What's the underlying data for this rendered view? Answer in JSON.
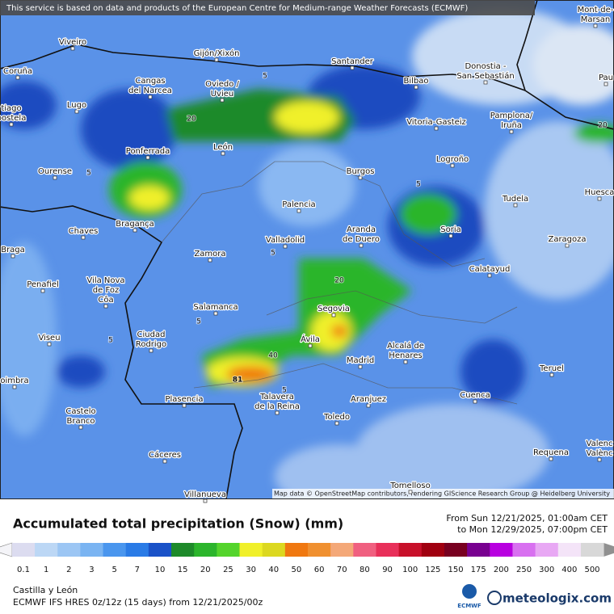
{
  "banner": "This service is based on data and products of the European Centre for Medium-range Weather Forecasts (ECMWF)",
  "map": {
    "places": [
      [
        "Viveiro"
      ],
      [
        "Gijón/Xixón"
      ],
      [
        "Santander"
      ],
      [
        "Donostia -",
        "San Sebastián"
      ],
      [
        "Coruña"
      ],
      [
        "Cangas",
        "del Narcea"
      ],
      [
        "Oviedo /",
        "Uvieu"
      ],
      [
        "Bilbao"
      ],
      [
        "Mont-de-",
        "Marsan"
      ],
      [
        "Pau"
      ],
      [
        "tiago",
        "postela"
      ],
      [
        "Lugo"
      ],
      [
        "Vitoria-Gasteiz"
      ],
      [
        "Pamplona/",
        "Iruña"
      ],
      [
        "Ponferrada"
      ],
      [
        "León"
      ],
      [
        "Logroño"
      ],
      [
        "Ourense"
      ],
      [
        "Burgos"
      ],
      [
        "Tudela"
      ],
      [
        "Huesca"
      ],
      [
        "Bragança"
      ],
      [
        "Palencia"
      ],
      [
        "Chaves"
      ],
      [
        "Aranda",
        "de Duero"
      ],
      [
        "Soria"
      ],
      [
        "Zaragoza"
      ],
      [
        "Braga"
      ],
      [
        "Valladolid"
      ],
      [
        "Zamora"
      ],
      [
        "Calatayud"
      ],
      [
        "Penafiel"
      ],
      [
        "Vila Nova",
        "de Foz",
        "Côa"
      ],
      [
        "Salamanca"
      ],
      [
        "Segovia"
      ],
      [
        "Ciudad",
        "Rodrigo"
      ],
      [
        "Viseu"
      ],
      [
        "Ávila"
      ],
      [
        "Alcalá de",
        "Henares"
      ],
      [
        "Madrid"
      ],
      [
        "Teruel"
      ],
      [
        "oimbra"
      ],
      [
        "Plasencia"
      ],
      [
        "Talavera",
        "de la Reina"
      ],
      [
        "Aranjuez"
      ],
      [
        "Cuenca"
      ],
      [
        "Castelo",
        "Branco"
      ],
      [
        "Toledo"
      ],
      [
        "Cáceres"
      ],
      [
        "Requena"
      ],
      [
        "Valenc",
        "Valènc"
      ],
      [
        "Tomelloso"
      ],
      [
        "Villanueva"
      ]
    ],
    "contour_labels": [
      "5",
      "20",
      "5",
      "5",
      "5",
      "20",
      "5",
      "5",
      "40",
      "81",
      "5",
      "20"
    ],
    "attribution": "Map data © OpenStreetMap contributors, rendering GIScience Research Group @ Heidelberg University"
  },
  "legend": {
    "title": "Accumulated total precipitation (Snow) (mm)",
    "period": [
      "From Sun 12/21/2025, 01:00am CET",
      "to Mon 12/29/2025, 07:00pm CET"
    ],
    "ticks": [
      0.1,
      1,
      2,
      3,
      5,
      7,
      10,
      15,
      20,
      25,
      30,
      40,
      50,
      60,
      70,
      80,
      90,
      100,
      125,
      150,
      175,
      200,
      250,
      300,
      400,
      500
    ],
    "colors": [
      "#dcdcf0",
      "#bcd7f5",
      "#9cc6f4",
      "#7ab4f2",
      "#4a96ee",
      "#2a7be6",
      "#1a52c8",
      "#1e8a2a",
      "#2cb52c",
      "#54d42c",
      "#f0f02a",
      "#dcd820",
      "#f07810",
      "#f09030",
      "#f4a878",
      "#f06080",
      "#e8305a",
      "#c8102a",
      "#a00010",
      "#780020",
      "#780090",
      "#b800e0",
      "#d870f0",
      "#e8a8f4",
      "#f4e4f8",
      "#d8d8d8"
    ]
  },
  "footer": {
    "region": "Castilla y León",
    "model": "ECMWF IFS HRES 0z/12z (15 days) from 12/21/2025/00z",
    "ecmwf": "ECMWF",
    "brand": "meteologix.com"
  }
}
